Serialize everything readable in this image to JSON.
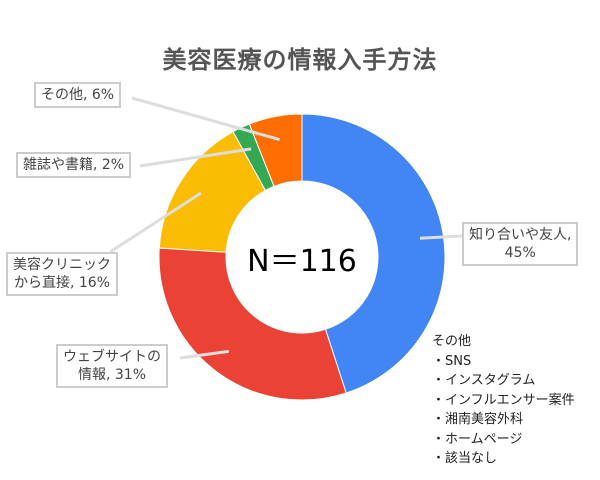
{
  "chart_data": {
    "type": "pie",
    "style": "donut",
    "title": "美容医療の情報入手方法",
    "center_label": "N＝116",
    "slices": [
      {
        "label": "知り合いや友人",
        "value": 45,
        "display": "知り合いや友人,\n45%",
        "color": "#4285f4"
      },
      {
        "label": "ウェブサイトの情報",
        "value": 31,
        "display": "ウェブサイトの\n情報, 31%",
        "color": "#ea4335"
      },
      {
        "label": "美容クリニックから直接",
        "value": 16,
        "display": "美容クリニック\nから直接, 16%",
        "color": "#fbbc04"
      },
      {
        "label": "雑誌や書籍",
        "value": 2,
        "display": "雑誌や書籍, 2%",
        "color": "#34a853"
      },
      {
        "label": "その他",
        "value": 6,
        "display": "その他, 6%",
        "color": "#ff6d01"
      }
    ],
    "legend": "none"
  },
  "note": {
    "heading": "その他",
    "items": [
      "・SNS",
      "・インスタグラム",
      "・インフルエンサー案件",
      "・湘南美容外科",
      "・ホームページ",
      "・該当なし"
    ]
  }
}
